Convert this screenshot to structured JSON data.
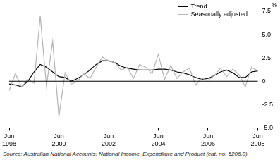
{
  "chart_data": {
    "type": "line",
    "y_label": "%",
    "source": "Source: Australian National Accounts: National Income, Expenditure and Product (cat. no. 5206.0)",
    "categories": [
      "Jun 1998",
      null,
      null,
      null,
      null,
      null,
      null,
      null,
      "Jun 2000",
      null,
      null,
      null,
      null,
      null,
      null,
      null,
      "Jun 2002",
      null,
      null,
      null,
      null,
      null,
      null,
      null,
      "Jun 2004",
      null,
      null,
      null,
      null,
      null,
      null,
      null,
      "Jun 2006",
      null,
      null,
      null,
      null,
      null,
      null,
      null,
      "Jun 2008"
    ],
    "series": [
      {
        "name": "Trend",
        "color": "#000000",
        "values": [
          -0.3,
          -0.4,
          -0.6,
          0.0,
          1.0,
          1.8,
          1.5,
          1.0,
          0.5,
          0.4,
          0.0,
          0.3,
          0.7,
          1.2,
          1.8,
          2.2,
          2.2,
          2.0,
          1.6,
          1.4,
          1.3,
          1.2,
          1.2,
          1.2,
          1.3,
          1.3,
          1.2,
          1.0,
          0.9,
          0.7,
          0.4,
          0.2,
          0.3,
          0.6,
          1.0,
          1.2,
          0.9,
          0.4,
          0.4,
          1.0,
          1.1
        ]
      },
      {
        "name": "Seasonally adjusted",
        "color": "#b3b3b3",
        "values": [
          -1.0,
          0.8,
          -0.6,
          0.2,
          -0.2,
          7.0,
          -0.5,
          4.3,
          -3.8,
          0.9,
          -0.3,
          0.0,
          0.8,
          0.3,
          1.5,
          2.6,
          2.2,
          2.0,
          1.2,
          1.5,
          0.3,
          1.8,
          1.5,
          0.8,
          2.9,
          0.2,
          1.7,
          0.3,
          1.0,
          1.4,
          -0.4,
          0.3,
          0.1,
          0.6,
          1.4,
          0.5,
          1.3,
          0.7,
          -0.6,
          1.5,
          1.1
        ]
      }
    ],
    "ylim": [
      -5,
      7.5
    ],
    "yticks": [
      {
        "value": -5,
        "label": "-5.0"
      },
      {
        "value": -2.5,
        "label": "-2.5"
      },
      0,
      {
        "value": 2.5,
        "label": "2.5"
      },
      {
        "value": 5,
        "label": "5.0"
      },
      {
        "value": 7.5,
        "label": "7.5"
      }
    ],
    "grid": false,
    "legend": "upper right"
  }
}
